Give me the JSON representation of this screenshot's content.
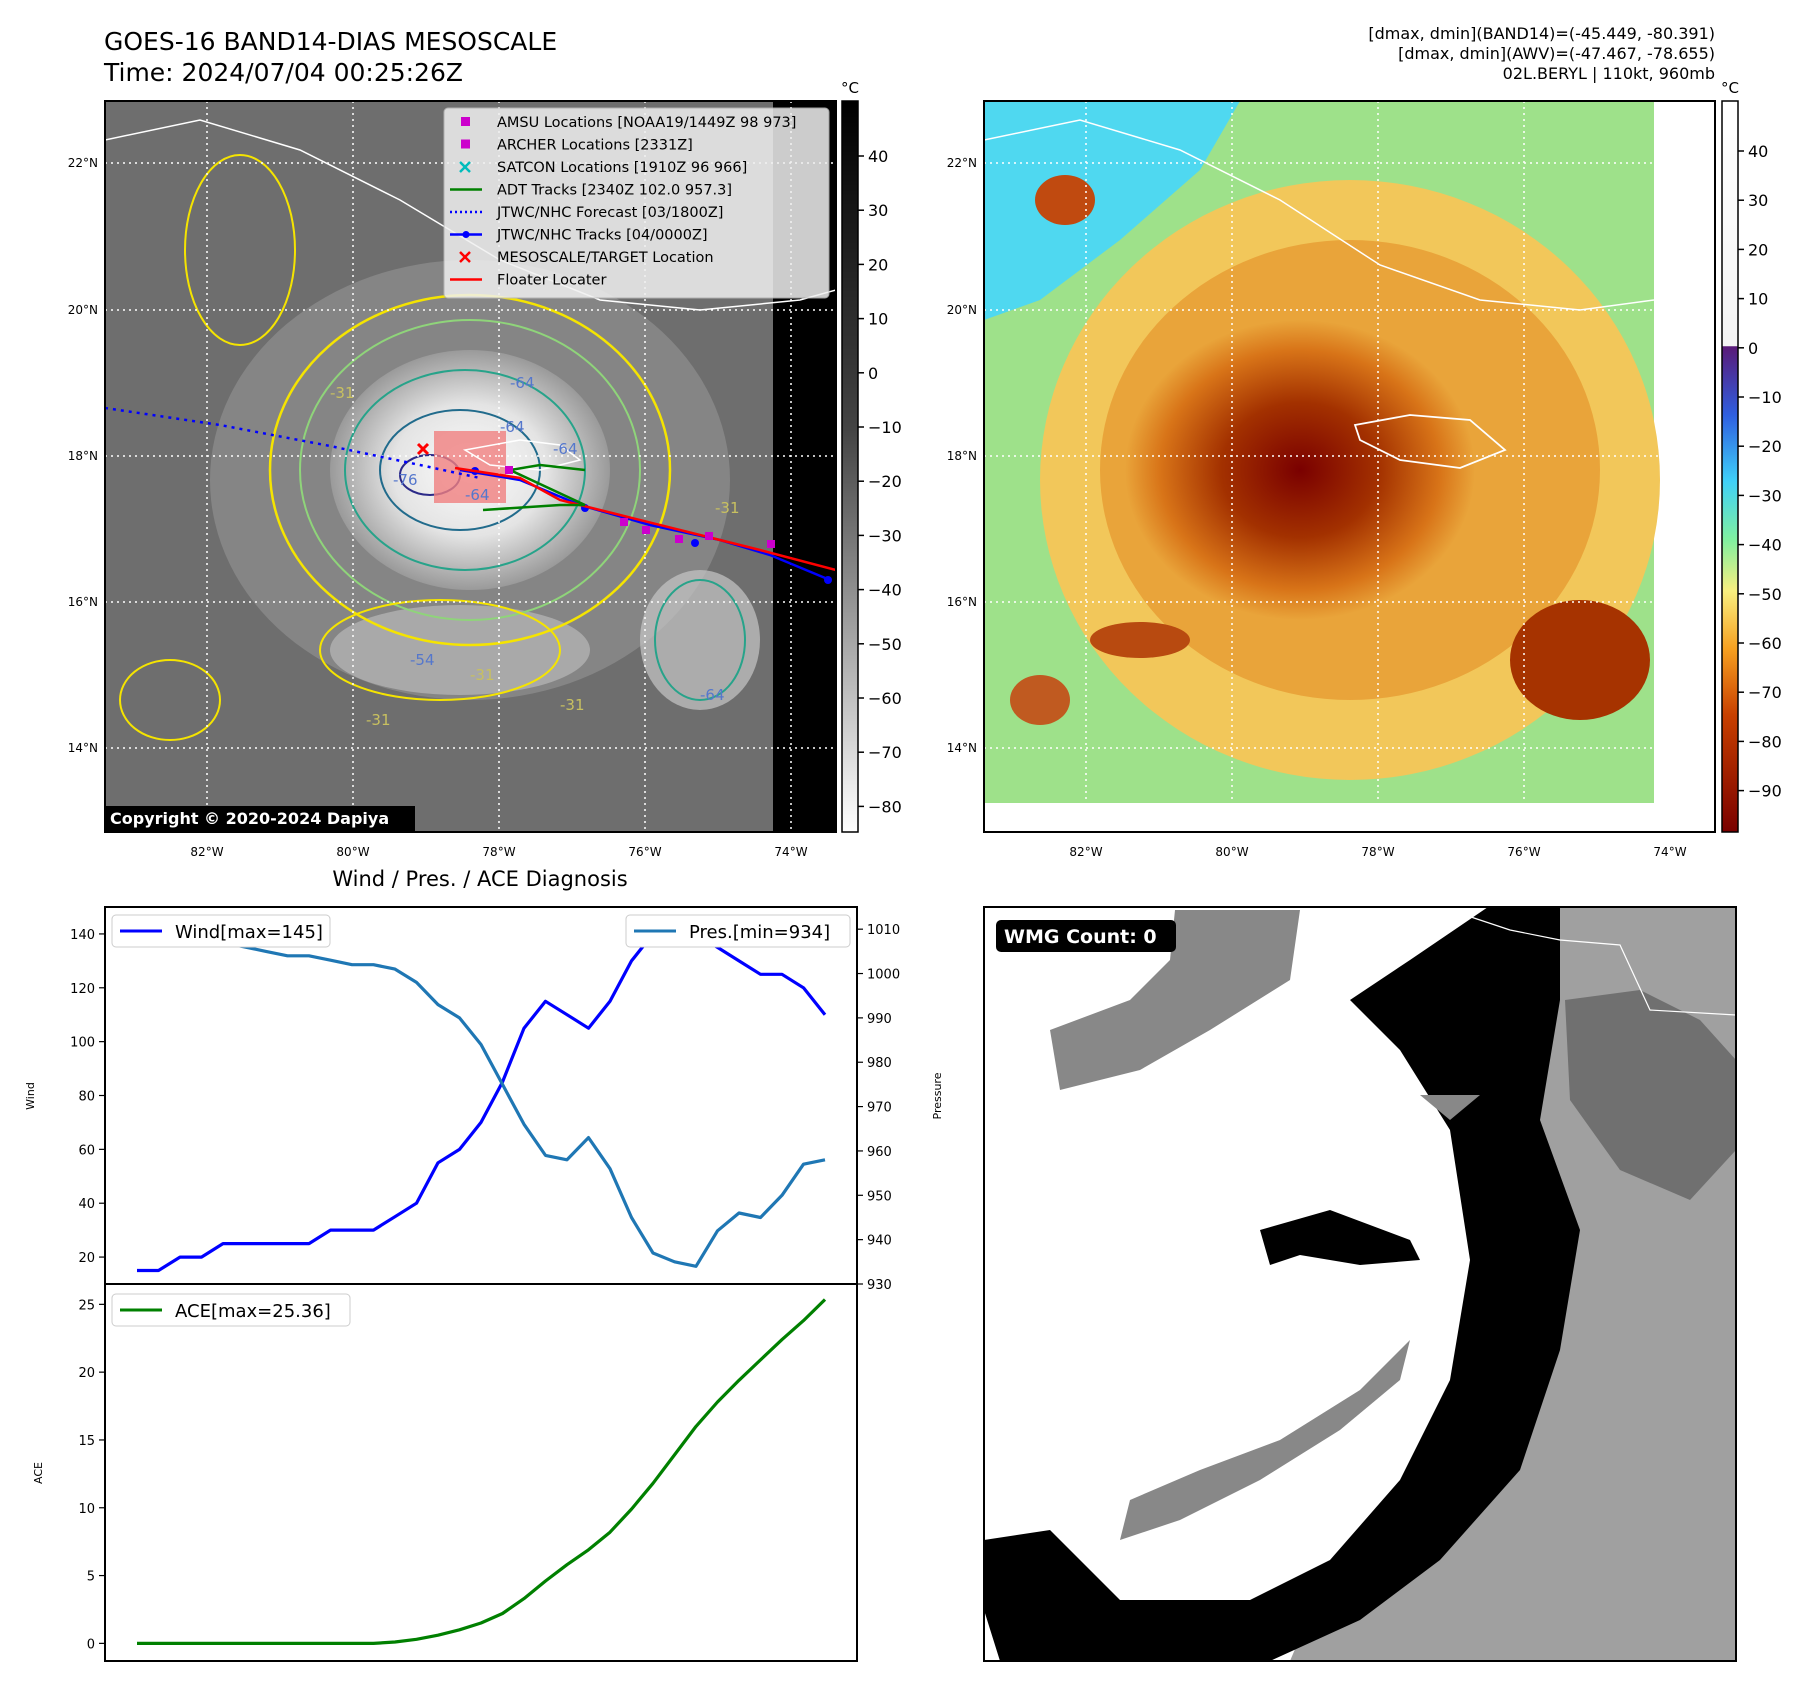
{
  "header": {
    "title_line1": "GOES-16 BAND14-DIAS MESOSCALE",
    "title_line2": "Time: 2024/07/04 00:25:26Z",
    "right_line1": "[dmax, dmin](BAND14)=(-45.449, -80.391)",
    "right_line2": "[dmax, dmin](AWV)=(-47.467, -78.655)",
    "right_line3": "02L.BERYL | 110kt, 960mb"
  },
  "map_ticks": {
    "lat_labels": [
      "22°N",
      "20°N",
      "18°N",
      "16°N",
      "14°N"
    ],
    "lon_labels": [
      "82°W",
      "80°W",
      "78°W",
      "76°W",
      "74°W"
    ]
  },
  "ir_panel": {
    "legend": [
      {
        "label": "AMSU Locations [NOAA19/1449Z 98 973]",
        "marker": "square",
        "color": "#cc00cc"
      },
      {
        "label": "ARCHER Locations [2331Z]",
        "marker": "square",
        "color": "#cc00cc"
      },
      {
        "label": "SATCON Locations [1910Z 96 966]",
        "marker": "x",
        "color": "#00bcbc"
      },
      {
        "label": "ADT Tracks [2340Z 102.0 957.3]",
        "marker": "line",
        "color": "#008000"
      },
      {
        "label": "JTWC/NHC Forecast [03/1800Z]",
        "marker": "dotted",
        "color": "#0000ff"
      },
      {
        "label": "JTWC/NHC Tracks [04/0000Z]",
        "marker": "line-dot",
        "color": "#0000ff"
      },
      {
        "label": "MESOSCALE/TARGET Location",
        "marker": "x",
        "color": "#ff0000"
      },
      {
        "label": "Floater Locater",
        "marker": "line",
        "color": "#ff0000"
      }
    ],
    "contour_labels": [
      "-64",
      "-64",
      "-64",
      "-76",
      "-64",
      "-31",
      "-31",
      "-31",
      "-31",
      "-54",
      "-31",
      "-64"
    ],
    "copyright": "Copyright © 2020-2024 Dapiya",
    "colorbar_unit": "°C",
    "colorbar_ticks": [
      "40",
      "30",
      "20",
      "10",
      "0",
      "−10",
      "−20",
      "−30",
      "−40",
      "−50",
      "−60",
      "−70",
      "−80"
    ]
  },
  "awv_panel": {
    "colorbar_unit": "°C",
    "colorbar_ticks": [
      "40",
      "30",
      "20",
      "10",
      "0",
      "−10",
      "−20",
      "−30",
      "−40",
      "−50",
      "−60",
      "−70",
      "−80",
      "−90"
    ]
  },
  "diagnosis": {
    "title": "Wind / Pres. / ACE Diagnosis",
    "wind_ylabel": "Wind",
    "pres_ylabel": "Pressure",
    "ace_ylabel": "ACE",
    "wind_legend": "Wind[max=145]",
    "pres_legend": "Pres.[min=934]",
    "ace_legend": "ACE[max=25.36]",
    "wind_ticks": [
      "140",
      "120",
      "100",
      "80",
      "60",
      "40",
      "20"
    ],
    "pres_ticks": [
      "1010",
      "1000",
      "990",
      "980",
      "970",
      "960",
      "950",
      "940",
      "930"
    ],
    "ace_ticks": [
      "25",
      "20",
      "15",
      "10",
      "5",
      "0"
    ]
  },
  "wmg_panel": {
    "badge": "WMG Count: 0"
  },
  "chart_data": [
    {
      "type": "line",
      "title": "Wind / Pres. / ACE Diagnosis",
      "ylabel": "Wind",
      "ylim": [
        10,
        150
      ],
      "series": [
        {
          "name": "Wind[max=145]",
          "color": "#0000ff",
          "values": [
            15,
            15,
            20,
            20,
            25,
            25,
            25,
            25,
            25,
            30,
            30,
            30,
            35,
            40,
            55,
            60,
            70,
            85,
            105,
            115,
            110,
            105,
            115,
            130,
            140,
            145,
            140,
            135,
            130,
            125,
            125,
            120,
            110
          ]
        }
      ]
    },
    {
      "type": "line",
      "ylabel": "Pressure",
      "ylim": [
        930,
        1015
      ],
      "series": [
        {
          "name": "Pres.[min=934]",
          "color": "#1f77b4",
          "values": [
            1008,
            1008,
            1008,
            1007,
            1007,
            1006,
            1005,
            1004,
            1004,
            1003,
            1002,
            1002,
            1001,
            998,
            993,
            990,
            984,
            975,
            966,
            959,
            958,
            963,
            956,
            945,
            937,
            935,
            934,
            942,
            946,
            945,
            950,
            957,
            958
          ]
        }
      ]
    },
    {
      "type": "line",
      "ylabel": "ACE",
      "ylim": [
        -1.3,
        26.5
      ],
      "series": [
        {
          "name": "ACE[max=25.36]",
          "color": "#008000",
          "values": [
            0,
            0,
            0,
            0,
            0,
            0,
            0,
            0,
            0,
            0,
            0,
            0,
            0.1,
            0.3,
            0.6,
            1.0,
            1.5,
            2.2,
            3.3,
            4.6,
            5.8,
            6.9,
            8.2,
            9.9,
            11.8,
            13.9,
            16.0,
            17.8,
            19.4,
            20.9,
            22.4,
            23.8,
            25.36
          ]
        }
      ]
    }
  ]
}
